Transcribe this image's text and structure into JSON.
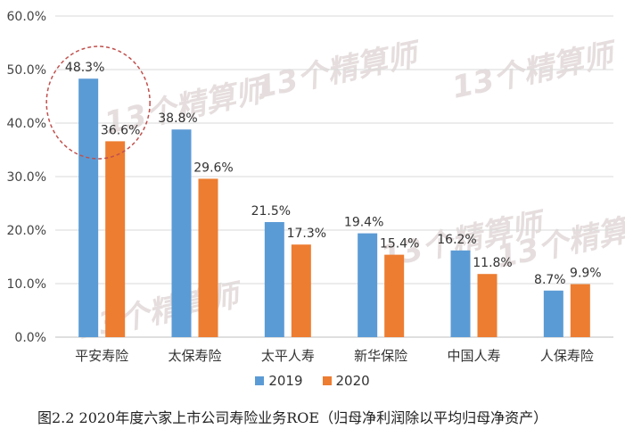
{
  "chart_data": {
    "type": "bar",
    "title": "",
    "xlabel": "",
    "ylabel": "",
    "categories": [
      "平安寿险",
      "太保寿险",
      "太平人寿",
      "新华保险",
      "中国人寿",
      "人保寿险"
    ],
    "series": [
      {
        "name": "2019",
        "values": [
          48.3,
          38.8,
          21.5,
          19.4,
          16.2,
          8.7
        ],
        "labels": [
          "48.3%",
          "38.8%",
          "21.5%",
          "19.4%",
          "16.2%",
          "8.7%"
        ]
      },
      {
        "name": "2020",
        "values": [
          36.6,
          29.6,
          17.3,
          15.4,
          11.8,
          9.9
        ],
        "labels": [
          "36.6%",
          "29.6%",
          "17.3%",
          "15.4%",
          "11.8%",
          "9.9%"
        ]
      }
    ],
    "ylim": [
      0,
      60
    ],
    "yticks": [
      0,
      10,
      20,
      30,
      40,
      50,
      60
    ],
    "ytick_labels": [
      "0.0%",
      "10.0%",
      "20.0%",
      "30.0%",
      "40.0%",
      "50.0%",
      "60.0%"
    ],
    "grid": true,
    "legend_position": "bottom",
    "colors": {
      "2019": "#5b9bd5",
      "2020": "#ed7d31",
      "grid": "#d9d9d9",
      "highlight_circle": "#c0504d"
    },
    "annotation": {
      "type": "dashed-circle",
      "category": "平安寿险"
    }
  },
  "caption": "图2.2  2020年度六家上市公司寿险业务ROE（归母净利润除以平均归母净资产）",
  "watermark": {
    "text": "13个精算师"
  }
}
